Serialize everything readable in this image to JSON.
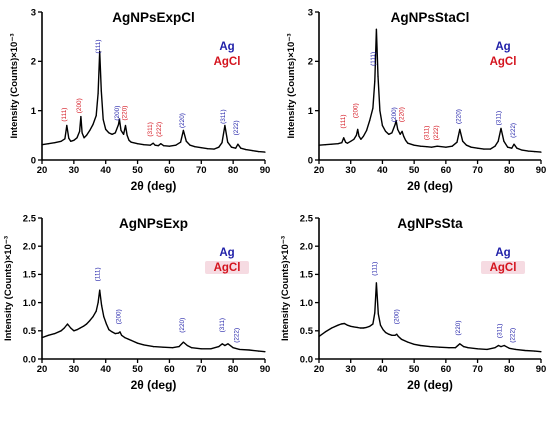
{
  "colors": {
    "ag": "#1f1fa8",
    "agcl": "#d4141e",
    "trace": "#000000"
  },
  "x_axis_label": "2θ (deg)",
  "y_axis_label": "Intensity (Counts)×10⁻³",
  "legend": [
    "Ag",
    "AgCl"
  ],
  "chart_data": [
    {
      "type": "line",
      "title": "AgNPsExpCl",
      "xlabel": "2θ (deg)",
      "ylabel": "Intensity (Counts)×10⁻³",
      "xlim": [
        20,
        90
      ],
      "ylim": [
        0,
        3
      ],
      "xticks": [
        "20",
        "30",
        "40",
        "50",
        "60",
        "70",
        "80",
        "90"
      ],
      "yticks": [
        "0",
        "1",
        "2",
        "3"
      ],
      "legend": [
        {
          "name": "Ag",
          "color": "ag"
        },
        {
          "name": "AgCl",
          "color": "agcl",
          "highlight": false
        }
      ],
      "series": [
        {
          "name": "",
          "x": [
            20,
            22,
            24,
            26,
            27.2,
            27.8,
            28.4,
            29,
            30,
            31,
            31.8,
            32.2,
            32.6,
            33.2,
            34,
            35,
            36,
            37,
            37.6,
            38.1,
            38.6,
            39.2,
            40,
            41,
            42,
            43,
            44,
            44.3,
            44.8,
            45.6,
            46.2,
            46.7,
            47.3,
            48,
            50,
            52,
            54,
            54.9,
            55.5,
            56.5,
            57.3,
            58.2,
            60,
            62,
            63.5,
            64.4,
            65.3,
            66.5,
            68,
            70,
            72,
            74,
            75.5,
            76.5,
            77.4,
            78.3,
            79.5,
            80.8,
            81.5,
            82.4,
            84,
            86,
            88,
            90
          ],
          "y": [
            0.31,
            0.33,
            0.35,
            0.38,
            0.43,
            0.7,
            0.44,
            0.38,
            0.4,
            0.45,
            0.58,
            0.88,
            0.55,
            0.45,
            0.5,
            0.6,
            0.72,
            0.9,
            1.35,
            2.2,
            1.4,
            0.82,
            0.62,
            0.55,
            0.52,
            0.55,
            0.72,
            0.83,
            0.6,
            0.52,
            0.7,
            0.5,
            0.4,
            0.36,
            0.33,
            0.31,
            0.3,
            0.34,
            0.3,
            0.29,
            0.33,
            0.29,
            0.28,
            0.3,
            0.36,
            0.6,
            0.38,
            0.3,
            0.27,
            0.25,
            0.23,
            0.22,
            0.26,
            0.35,
            0.7,
            0.36,
            0.26,
            0.24,
            0.32,
            0.24,
            0.21,
            0.19,
            0.17,
            0.16
          ]
        }
      ],
      "peak_labels": [
        {
          "text": "(111)",
          "x": 27.6,
          "y": 0.92,
          "color": "agcl"
        },
        {
          "text": "(200)",
          "x": 32.2,
          "y": 1.1,
          "color": "agcl"
        },
        {
          "text": "(111)",
          "x": 38.2,
          "y": 2.3,
          "color": "ag"
        },
        {
          "text": "(200)",
          "x": 44.2,
          "y": 0.95,
          "color": "ag"
        },
        {
          "text": "(220)",
          "x": 46.5,
          "y": 0.95,
          "color": "agcl"
        },
        {
          "text": "(311)",
          "x": 54.6,
          "y": 0.62,
          "color": "agcl"
        },
        {
          "text": "(222)",
          "x": 57.4,
          "y": 0.62,
          "color": "agcl"
        },
        {
          "text": "(220)",
          "x": 64.5,
          "y": 0.8,
          "color": "ag"
        },
        {
          "text": "(311)",
          "x": 77.4,
          "y": 0.88,
          "color": "ag"
        },
        {
          "text": "(222)",
          "x": 81.6,
          "y": 0.65,
          "color": "ag"
        }
      ]
    },
    {
      "type": "line",
      "title": "AgNPsStaCl",
      "xlabel": "2θ (deg)",
      "ylabel": "Intensity (Counts)×10⁻³",
      "xlim": [
        20,
        90
      ],
      "ylim": [
        0,
        3
      ],
      "xticks": [
        "20",
        "30",
        "40",
        "50",
        "60",
        "70",
        "80",
        "90"
      ],
      "yticks": [
        "0",
        "1",
        "2",
        "3"
      ],
      "legend": [
        {
          "name": "Ag",
          "color": "ag"
        },
        {
          "name": "AgCl",
          "color": "agcl",
          "highlight": false
        }
      ],
      "series": [
        {
          "name": "",
          "x": [
            20,
            22,
            24,
            26,
            27.2,
            27.8,
            28.4,
            29,
            30,
            31,
            31.8,
            32.2,
            32.6,
            33.2,
            34,
            35,
            36,
            37,
            37.6,
            38.1,
            38.6,
            39.2,
            40,
            41,
            42,
            43,
            44,
            44.3,
            44.8,
            45.6,
            46.2,
            46.7,
            47.3,
            48,
            50,
            52,
            54,
            55.5,
            57.3,
            60,
            62,
            63.5,
            64.4,
            65.3,
            66.5,
            68,
            70,
            72,
            74,
            75.5,
            76.5,
            77.4,
            78.3,
            79.5,
            80.8,
            81.5,
            82.4,
            84,
            86,
            88,
            90
          ],
          "y": [
            0.3,
            0.31,
            0.32,
            0.33,
            0.35,
            0.45,
            0.36,
            0.34,
            0.38,
            0.42,
            0.5,
            0.62,
            0.48,
            0.42,
            0.48,
            0.6,
            0.8,
            1.05,
            1.6,
            2.65,
            1.7,
            1.0,
            0.7,
            0.58,
            0.52,
            0.55,
            0.72,
            0.8,
            0.62,
            0.52,
            0.58,
            0.48,
            0.4,
            0.34,
            0.3,
            0.28,
            0.27,
            0.26,
            0.28,
            0.26,
            0.28,
            0.36,
            0.62,
            0.38,
            0.3,
            0.26,
            0.24,
            0.22,
            0.22,
            0.28,
            0.38,
            0.64,
            0.38,
            0.26,
            0.24,
            0.32,
            0.24,
            0.2,
            0.18,
            0.17,
            0.16
          ]
        }
      ],
      "peak_labels": [
        {
          "text": "(111)",
          "x": 28.2,
          "y": 0.78,
          "color": "agcl"
        },
        {
          "text": "(200)",
          "x": 32.2,
          "y": 1.0,
          "color": "agcl"
        },
        {
          "text": "(111)",
          "x": 37.6,
          "y": 2.05,
          "color": "ag"
        },
        {
          "text": "(200)",
          "x": 44.3,
          "y": 0.92,
          "color": "ag"
        },
        {
          "text": "(220)",
          "x": 46.7,
          "y": 0.92,
          "color": "agcl"
        },
        {
          "text": "(311)",
          "x": 54.6,
          "y": 0.55,
          "color": "agcl"
        },
        {
          "text": "(222)",
          "x": 57.6,
          "y": 0.55,
          "color": "agcl"
        },
        {
          "text": "(220)",
          "x": 64.6,
          "y": 0.88,
          "color": "ag"
        },
        {
          "text": "(311)",
          "x": 77.2,
          "y": 0.85,
          "color": "ag"
        },
        {
          "text": "(222)",
          "x": 81.8,
          "y": 0.6,
          "color": "ag"
        }
      ]
    },
    {
      "type": "line",
      "title": "AgNPsExp",
      "xlabel": "2θ (deg)",
      "ylabel": "Intensity (Counts)×10⁻³",
      "xlim": [
        20,
        90
      ],
      "ylim": [
        0,
        2.5
      ],
      "xticks": [
        "20",
        "30",
        "40",
        "50",
        "60",
        "70",
        "80",
        "90"
      ],
      "yticks": [
        "0.0",
        "0.5",
        "1.0",
        "1.5",
        "2.0",
        "2.5"
      ],
      "legend": [
        {
          "name": "Ag",
          "color": "ag"
        },
        {
          "name": "AgCl",
          "color": "agcl",
          "highlight": true
        }
      ],
      "series": [
        {
          "name": "",
          "x": [
            20,
            22,
            24,
            26,
            27,
            28,
            29,
            30,
            31,
            32,
            33,
            34,
            35,
            36,
            37,
            37.6,
            38.1,
            38.7,
            39.4,
            40.2,
            41,
            42,
            43,
            44,
            44.5,
            45,
            46,
            48,
            50,
            52,
            55,
            58,
            61,
            63,
            64.4,
            65.6,
            67,
            70,
            73,
            75.5,
            76.6,
            77.4,
            78.4,
            80,
            82,
            85,
            88,
            90
          ],
          "y": [
            0.38,
            0.42,
            0.45,
            0.5,
            0.55,
            0.62,
            0.55,
            0.5,
            0.52,
            0.55,
            0.58,
            0.62,
            0.68,
            0.75,
            0.85,
            1.0,
            1.22,
            0.95,
            0.75,
            0.62,
            0.52,
            0.48,
            0.45,
            0.46,
            0.48,
            0.42,
            0.38,
            0.33,
            0.28,
            0.25,
            0.22,
            0.21,
            0.2,
            0.22,
            0.3,
            0.24,
            0.2,
            0.18,
            0.18,
            0.22,
            0.27,
            0.24,
            0.27,
            0.2,
            0.17,
            0.16,
            0.14,
            0.13
          ]
        }
      ],
      "peak_labels": [
        {
          "text": "(111)",
          "x": 38.0,
          "y": 1.5,
          "color": "ag"
        },
        {
          "text": "(200)",
          "x": 44.6,
          "y": 0.75,
          "color": "ag"
        },
        {
          "text": "(220)",
          "x": 64.6,
          "y": 0.6,
          "color": "ag"
        },
        {
          "text": "(311)",
          "x": 77.2,
          "y": 0.6,
          "color": "ag"
        },
        {
          "text": "(222)",
          "x": 81.7,
          "y": 0.42,
          "color": "ag"
        }
      ]
    },
    {
      "type": "line",
      "title": "AgNPsSta",
      "xlabel": "2θ (deg)",
      "ylabel": "Intensity (Counts)×10⁻³",
      "xlim": [
        20,
        90
      ],
      "ylim": [
        0,
        2.5
      ],
      "xticks": [
        "20",
        "30",
        "40",
        "50",
        "60",
        "70",
        "80",
        "90"
      ],
      "yticks": [
        "0.0",
        "0.5",
        "1.0",
        "1.5",
        "2.0",
        "2.5"
      ],
      "legend": [
        {
          "name": "Ag",
          "color": "ag"
        },
        {
          "name": "AgCl",
          "color": "agcl",
          "highlight": true
        }
      ],
      "series": [
        {
          "name": "",
          "x": [
            20,
            22,
            24,
            26,
            27,
            28,
            29,
            30,
            31,
            32,
            33,
            34,
            35,
            36,
            37,
            37.6,
            38.1,
            38.7,
            39.4,
            40.2,
            41,
            42,
            43,
            44,
            44.5,
            45,
            46,
            48,
            50,
            52,
            55,
            58,
            61,
            63,
            64.4,
            65.6,
            67,
            70,
            73,
            75.5,
            76.6,
            77.4,
            78.4,
            80,
            82,
            85,
            88,
            90
          ],
          "y": [
            0.4,
            0.48,
            0.55,
            0.6,
            0.62,
            0.63,
            0.6,
            0.58,
            0.57,
            0.56,
            0.55,
            0.55,
            0.56,
            0.58,
            0.62,
            0.82,
            1.35,
            0.8,
            0.6,
            0.52,
            0.47,
            0.44,
            0.42,
            0.42,
            0.44,
            0.4,
            0.35,
            0.3,
            0.26,
            0.24,
            0.22,
            0.21,
            0.2,
            0.2,
            0.27,
            0.22,
            0.2,
            0.18,
            0.17,
            0.2,
            0.24,
            0.22,
            0.24,
            0.19,
            0.17,
            0.15,
            0.14,
            0.13
          ]
        }
      ],
      "peak_labels": [
        {
          "text": "(111)",
          "x": 38.2,
          "y": 1.6,
          "color": "ag"
        },
        {
          "text": "(200)",
          "x": 45.0,
          "y": 0.75,
          "color": "ag"
        },
        {
          "text": "(220)",
          "x": 64.5,
          "y": 0.55,
          "color": "ag"
        },
        {
          "text": "(311)",
          "x": 77.6,
          "y": 0.5,
          "color": "ag"
        },
        {
          "text": "(222)",
          "x": 81.7,
          "y": 0.42,
          "color": "ag"
        }
      ]
    }
  ]
}
